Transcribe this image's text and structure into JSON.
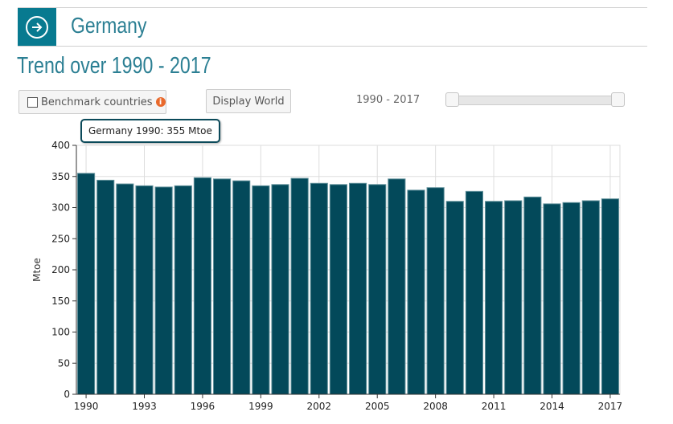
{
  "header": {
    "title": "Germany",
    "icon": "arrow-right-circle-icon",
    "color": "#087a90"
  },
  "subtitle": "Trend over 1990 - 2017",
  "controls": {
    "benchmark_label": "Benchmark countries",
    "display_world_label": "Display World",
    "range_label": "1990 - 2017",
    "range_min": 1990,
    "range_max": 2017
  },
  "tooltip": "Germany 1990: 355 Mtoe",
  "chart_data": {
    "type": "bar",
    "ylabel": "Mtoe",
    "xlabel": "",
    "ylim": [
      0,
      400
    ],
    "yticks": [
      0,
      50,
      100,
      150,
      200,
      250,
      300,
      350,
      400
    ],
    "xtick_labels": [
      "1990",
      "1993",
      "1996",
      "1999",
      "2002",
      "2005",
      "2008",
      "2011",
      "2014",
      "2017"
    ],
    "categories": [
      1990,
      1991,
      1992,
      1993,
      1994,
      1995,
      1996,
      1997,
      1998,
      1999,
      2000,
      2001,
      2002,
      2003,
      2004,
      2005,
      2006,
      2007,
      2008,
      2009,
      2010,
      2011,
      2012,
      2013,
      2014,
      2015,
      2016,
      2017
    ],
    "values": [
      355,
      344,
      338,
      335,
      333,
      335,
      348,
      346,
      343,
      335,
      337,
      347,
      339,
      337,
      339,
      337,
      346,
      328,
      332,
      310,
      326,
      310,
      311,
      317,
      306,
      308,
      311,
      314
    ],
    "bar_color": "#03495a",
    "grid": true
  }
}
